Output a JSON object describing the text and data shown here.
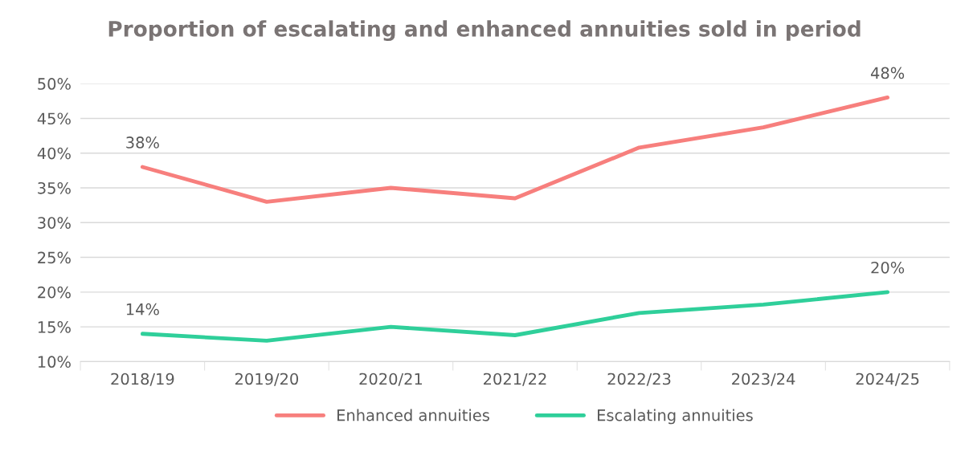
{
  "chart_data": {
    "type": "line",
    "title": "Proportion of escalating and enhanced annuities sold in period",
    "categories": [
      "2018/19",
      "2019/20",
      "2020/21",
      "2021/22",
      "2022/23",
      "2023/24",
      "2024/25"
    ],
    "series": [
      {
        "name": "Enhanced annuities",
        "color": "#f77f7d",
        "values": [
          38,
          33,
          35,
          33.5,
          40.8,
          43.7,
          48
        ],
        "value_labels": [
          "38%",
          null,
          null,
          null,
          null,
          null,
          "48%"
        ]
      },
      {
        "name": "Escalating annuities",
        "color": "#2fcf9a",
        "values": [
          14,
          13,
          15,
          13.8,
          17,
          18.2,
          20
        ],
        "value_labels": [
          "14%",
          null,
          null,
          null,
          null,
          null,
          "20%"
        ]
      }
    ],
    "ylim": [
      10,
      50
    ],
    "yticks": [
      {
        "value": 10,
        "label": "10%"
      },
      {
        "value": 15,
        "label": "15%"
      },
      {
        "value": 20,
        "label": "20%"
      },
      {
        "value": 25,
        "label": "25%"
      },
      {
        "value": 30,
        "label": "30%"
      },
      {
        "value": 35,
        "label": "35%"
      },
      {
        "value": 40,
        "label": "40%"
      },
      {
        "value": 45,
        "label": "45%"
      },
      {
        "value": 50,
        "label": "50%"
      }
    ],
    "grid": "y",
    "legend": "bottom",
    "marker": "none",
    "line_style": "solid"
  }
}
